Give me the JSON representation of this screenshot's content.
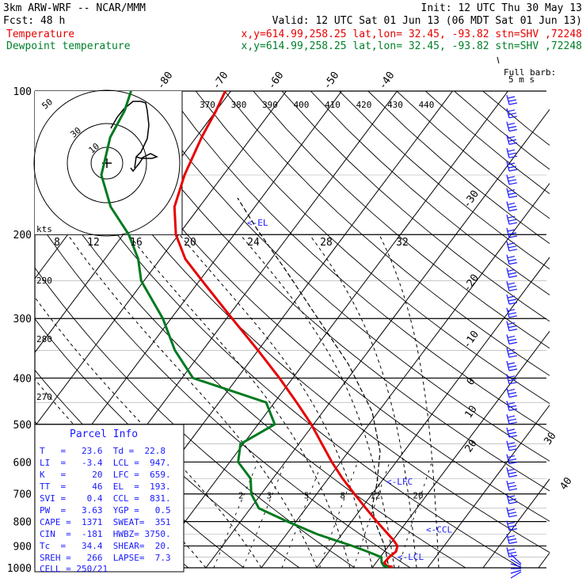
{
  "header": {
    "line1_left": "3km ARW-WRF -- NCAR/MMM",
    "line1_right": "Init: 12 UTC Thu 30 May 13",
    "line2_left": "Fcst:   48 h",
    "line2_right": "Valid: 12 UTC Sat 01 Jun 13 (06 MDT Sat 01 Jun 13)",
    "temp_label": "Temperature",
    "temp_info": "x,y=614.99,258.25   lat,lon= 32.45, -93.82  stn=SHV ,72248",
    "dew_label": "Dewpoint temperature",
    "dew_info": "x,y=614.99,258.25   lat,lon= 32.45, -93.82  stn=SHV ,72248",
    "full_barb": "Full barb:",
    "full_barb_units": "5 m s"
  },
  "chart_data": {
    "type": "line",
    "title": "3km ARW-WRF -- NCAR/MMM",
    "y_axis": "pressure (hPa), log scale",
    "pressure_ticks": [
      100,
      200,
      300,
      400,
      500,
      600,
      700,
      800,
      900,
      1000
    ],
    "ylim": [
      1000,
      100
    ],
    "isotherm_labels_top": [
      "-80",
      "-70",
      "-60",
      "-50",
      "-40"
    ],
    "isotherm_labels_right": [
      "-30",
      "-20",
      "-10",
      "0",
      "10",
      "20",
      "30",
      "40"
    ],
    "theta_e_labels": [
      "370",
      "380",
      "390",
      "400",
      "410",
      "420",
      "430",
      "440"
    ],
    "mixing_ratio_labels": [
      "2",
      "3",
      "5",
      "8",
      "12",
      "20"
    ],
    "hodograph_speed_labels": [
      "8",
      "12",
      "16",
      "20",
      "24",
      "28",
      "32"
    ],
    "hodograph_kts_label": "kts",
    "hodograph_ring_labels": [
      "50",
      "30",
      "10"
    ],
    "dry_adiabat_labels": [
      "290",
      "280",
      "270"
    ],
    "level_markers": {
      "el": "<-EL",
      "lfc": "<-LFC",
      "ccl": "<-CCL",
      "lcl": "<-LCL",
      "el_p": 193,
      "lfc_p": 659,
      "ccl_p": 831,
      "lcl_p": 947
    },
    "series": [
      {
        "name": "Temperature",
        "color": "#e60000",
        "pressure": [
          996,
          990,
          975,
          950,
          925,
          900,
          875,
          850,
          800,
          750,
          700,
          650,
          600,
          550,
          500,
          450,
          400,
          350,
          300,
          250,
          225,
          200,
          175,
          150,
          125,
          110,
          100
        ],
        "temperature_c": [
          23.6,
          22.3,
          21.5,
          21.6,
          22.1,
          21.6,
          20.1,
          18.3,
          14.6,
          10.8,
          6.8,
          2.6,
          -1.6,
          -5.8,
          -10.4,
          -16.0,
          -22.4,
          -30.0,
          -39.0,
          -49.5,
          -55.5,
          -60.5,
          -64.5,
          -67.0,
          -69.0,
          -70.0,
          -71.0
        ]
      },
      {
        "name": "Dewpoint temperature",
        "color": "#00802a",
        "pressure": [
          996,
          990,
          975,
          950,
          925,
          900,
          875,
          850,
          800,
          750,
          700,
          650,
          600,
          550,
          500,
          450,
          400,
          350,
          300,
          250,
          225,
          200,
          175,
          150,
          125,
          110,
          100
        ],
        "dewpoint_c": [
          22.8,
          21.8,
          21.0,
          20.2,
          17.0,
          13.5,
          9.5,
          5.5,
          -1.5,
          -8.5,
          -11.8,
          -14.0,
          -18.5,
          -20.5,
          -17.0,
          -21.5,
          -38.0,
          -45.0,
          -51.5,
          -60.5,
          -64.0,
          -69.0,
          -76.0,
          -82.0,
          -85.5,
          -86.5,
          -88.0
        ]
      }
    ],
    "wind_barb_count": 36
  },
  "parcel_info": {
    "title": "Parcel Info",
    "rows": [
      "T   =   23.6  Td =  22.8",
      "LI  =   -3.4  LCL =  947.",
      "K   =     20  LFC =  659.",
      "TT  =     46  EL  =  193.",
      "SVI =    0.4  CCL =  831.",
      "PW  =   3.63  YGP =   0.5",
      "CAPE =  1371  SWEAT=  351",
      "CIN  =  -181  HWBZ= 3750.",
      "Tc  =   34.4  SHEAR=  20.",
      "SREH =   266  LAPSE=  7.3",
      "CELL = 250/21"
    ]
  }
}
